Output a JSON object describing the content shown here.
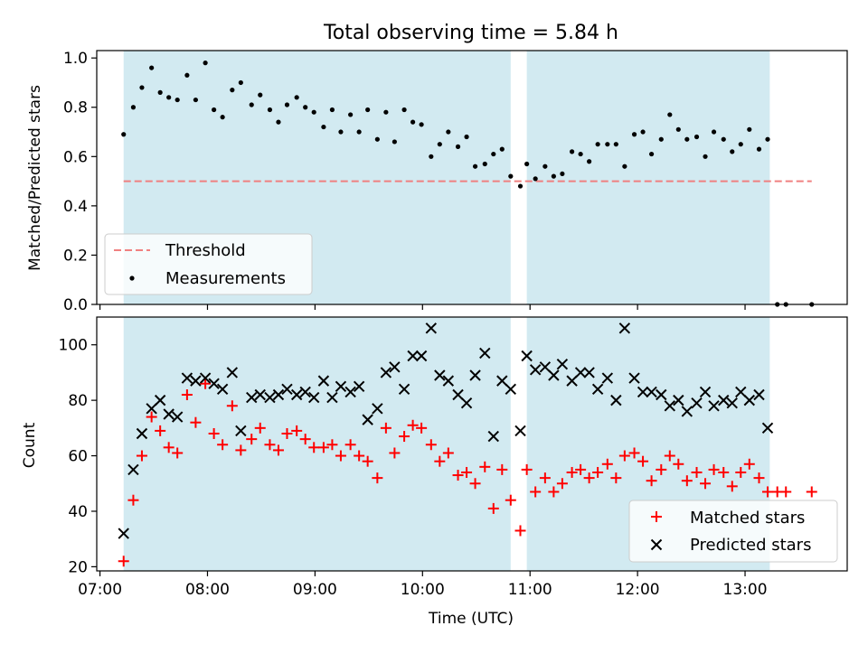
{
  "chart_data": {
    "title": "Total observing time = 5.84 h",
    "xlabel": "Time (UTC)",
    "x_units": "hours UTC",
    "xlim": [
      6.97,
      13.95
    ],
    "xticks": [
      7,
      8,
      9,
      10,
      11,
      12,
      13
    ],
    "xtick_labels": [
      "07:00",
      "08:00",
      "09:00",
      "10:00",
      "11:00",
      "12:00",
      "13:00"
    ],
    "shaded_regions": [
      [
        7.22,
        10.82
      ],
      [
        10.97,
        13.23
      ]
    ],
    "shade_color": "#add8e6",
    "panels": [
      {
        "type": "scatter",
        "ylabel": "Matched/Predicted stars",
        "ylim": [
          0,
          1.03
        ],
        "yticks": [
          0.0,
          0.2,
          0.4,
          0.6,
          0.8,
          1.0
        ],
        "ytick_labels": [
          "0.0",
          "0.2",
          "0.4",
          "0.6",
          "0.8",
          "1.0"
        ],
        "legend": {
          "position": "lower-left",
          "threshold_label": "Threshold",
          "measurements_label": "Measurements"
        },
        "threshold": {
          "name": "Threshold",
          "value": 0.5,
          "x_range": [
            7.22,
            13.62
          ],
          "color": "#f08080"
        },
        "measurements": {
          "name": "Measurements",
          "color": "#000000",
          "x": [
            7.22,
            7.31,
            7.39,
            7.48,
            7.56,
            7.64,
            7.72,
            7.81,
            7.89,
            7.98,
            8.06,
            8.14,
            8.23,
            8.31,
            8.41,
            8.49,
            8.58,
            8.66,
            8.74,
            8.83,
            8.91,
            8.99,
            9.08,
            9.16,
            9.24,
            9.33,
            9.41,
            9.49,
            9.58,
            9.66,
            9.74,
            9.83,
            9.91,
            9.99,
            10.08,
            10.16,
            10.24,
            10.33,
            10.41,
            10.49,
            10.58,
            10.66,
            10.74,
            10.82,
            10.91,
            10.97,
            11.05,
            11.14,
            11.22,
            11.3,
            11.39,
            11.47,
            11.55,
            11.63,
            11.72,
            11.8,
            11.88,
            11.97,
            12.05,
            12.13,
            12.22,
            12.3,
            12.38,
            12.46,
            12.55,
            12.63,
            12.71,
            12.8,
            12.88,
            12.96,
            13.04,
            13.13,
            13.21,
            13.3,
            13.38,
            13.62
          ],
          "y": [
            0.69,
            0.8,
            0.88,
            0.96,
            0.86,
            0.84,
            0.83,
            0.93,
            0.83,
            0.98,
            0.79,
            0.76,
            0.87,
            0.9,
            0.81,
            0.85,
            0.79,
            0.74,
            0.81,
            0.84,
            0.8,
            0.78,
            0.72,
            0.79,
            0.7,
            0.77,
            0.7,
            0.79,
            0.67,
            0.78,
            0.66,
            0.79,
            0.74,
            0.73,
            0.6,
            0.65,
            0.7,
            0.64,
            0.68,
            0.56,
            0.57,
            0.61,
            0.63,
            0.52,
            0.48,
            0.57,
            0.51,
            0.56,
            0.52,
            0.53,
            0.62,
            0.61,
            0.58,
            0.65,
            0.65,
            0.65,
            0.56,
            0.69,
            0.7,
            0.61,
            0.67,
            0.77,
            0.71,
            0.67,
            0.68,
            0.6,
            0.7,
            0.67,
            0.62,
            0.65,
            0.71,
            0.63,
            0.67,
            0.0,
            0.0,
            0.0
          ]
        }
      },
      {
        "type": "scatter",
        "ylabel": "Count",
        "ylim": [
          18.5,
          110
        ],
        "yticks": [
          20,
          40,
          60,
          80,
          100
        ],
        "ytick_labels": [
          "20",
          "40",
          "60",
          "80",
          "100"
        ],
        "legend": {
          "position": "lower-right",
          "matched_label": "Matched stars",
          "predicted_label": "Predicted stars"
        },
        "series": [
          {
            "name": "Matched stars",
            "marker": "plus",
            "color": "#ff0000",
            "x": [
              7.22,
              7.31,
              7.39,
              7.48,
              7.56,
              7.64,
              7.72,
              7.81,
              7.89,
              7.98,
              8.06,
              8.14,
              8.23,
              8.31,
              8.41,
              8.49,
              8.58,
              8.66,
              8.74,
              8.83,
              8.91,
              8.99,
              9.08,
              9.16,
              9.24,
              9.33,
              9.41,
              9.49,
              9.58,
              9.66,
              9.74,
              9.83,
              9.91,
              9.99,
              10.08,
              10.16,
              10.24,
              10.33,
              10.41,
              10.49,
              10.58,
              10.66,
              10.74,
              10.82,
              10.91,
              10.97,
              11.05,
              11.14,
              11.22,
              11.3,
              11.39,
              11.47,
              11.55,
              11.63,
              11.72,
              11.8,
              11.88,
              11.97,
              12.05,
              12.13,
              12.22,
              12.3,
              12.38,
              12.46,
              12.55,
              12.63,
              12.71,
              12.8,
              12.88,
              12.96,
              13.04,
              13.13,
              13.21,
              13.3,
              13.38,
              13.62
            ],
            "y": [
              22,
              44,
              60,
              74,
              69,
              63,
              61,
              82,
              72,
              86,
              68,
              64,
              78,
              62,
              66,
              70,
              64,
              62,
              68,
              69,
              66,
              63,
              63,
              64,
              60,
              64,
              60,
              58,
              52,
              70,
              61,
              67,
              71,
              70,
              64,
              58,
              61,
              53,
              54,
              50,
              56,
              41,
              55,
              44,
              33,
              55,
              47,
              52,
              47,
              50,
              54,
              55,
              52,
              54,
              57,
              52,
              60,
              61,
              58,
              51,
              55,
              60,
              57,
              51,
              54,
              50,
              55,
              54,
              49,
              54,
              57,
              52,
              47,
              47,
              47,
              47
            ]
          },
          {
            "name": "Predicted stars",
            "marker": "x",
            "color": "#000000",
            "x": [
              7.22,
              7.31,
              7.39,
              7.48,
              7.56,
              7.64,
              7.72,
              7.81,
              7.89,
              7.98,
              8.06,
              8.14,
              8.23,
              8.31,
              8.41,
              8.49,
              8.58,
              8.66,
              8.74,
              8.83,
              8.91,
              8.99,
              9.08,
              9.16,
              9.24,
              9.33,
              9.41,
              9.49,
              9.58,
              9.66,
              9.74,
              9.83,
              9.91,
              9.99,
              10.08,
              10.16,
              10.24,
              10.33,
              10.41,
              10.49,
              10.58,
              10.66,
              10.74,
              10.82,
              10.91,
              10.97,
              11.05,
              11.14,
              11.22,
              11.3,
              11.39,
              11.47,
              11.55,
              11.63,
              11.72,
              11.8,
              11.88,
              11.97,
              12.05,
              12.13,
              12.22,
              12.3,
              12.38,
              12.46,
              12.55,
              12.63,
              12.71,
              12.8,
              12.88,
              12.96,
              13.04,
              13.13,
              13.21
            ],
            "y": [
              32,
              55,
              68,
              77,
              80,
              75,
              74,
              88,
              87,
              88,
              86,
              84,
              90,
              69,
              81,
              82,
              81,
              82,
              84,
              82,
              83,
              81,
              87,
              81,
              85,
              83,
              85,
              73,
              77,
              90,
              92,
              84,
              96,
              96,
              106,
              89,
              87,
              82,
              79,
              89,
              97,
              67,
              87,
              84,
              69,
              96,
              91,
              92,
              89,
              93,
              87,
              90,
              90,
              84,
              88,
              80,
              106,
              88,
              83,
              83,
              82,
              78,
              80,
              76,
              79,
              83,
              78,
              80,
              79,
              83,
              80,
              82,
              70
            ]
          }
        ]
      }
    ]
  }
}
